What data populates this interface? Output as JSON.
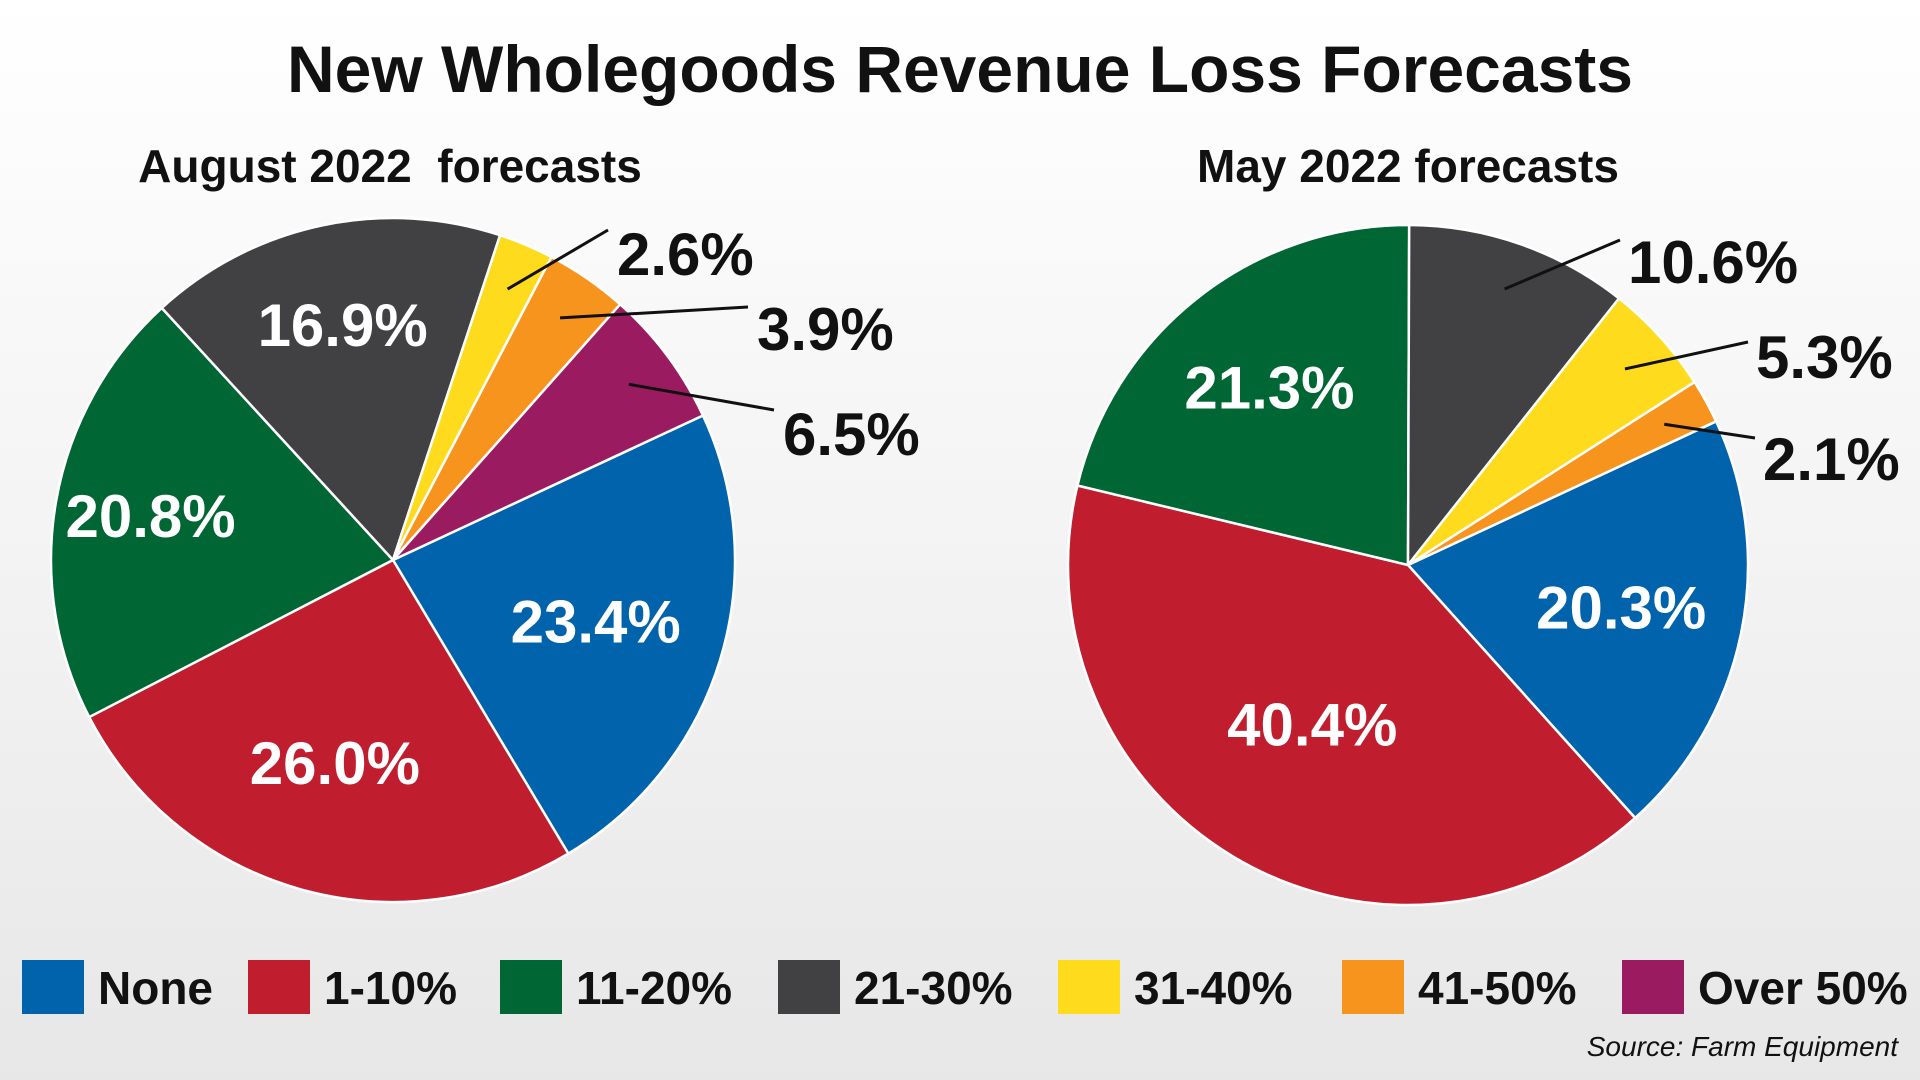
{
  "title": "New Wholegoods Revenue Loss Forecasts",
  "source": "Source: Farm Equipment",
  "legend": [
    {
      "label": "None",
      "color": "#0063ac"
    },
    {
      "label": "1-10%",
      "color": "#c01e2e"
    },
    {
      "label": "11-20%",
      "color": "#006634"
    },
    {
      "label": "21-30%",
      "color": "#414042"
    },
    {
      "label": "31-40%",
      "color": "#fedc1d"
    },
    {
      "label": "41-50%",
      "color": "#f7941d"
    },
    {
      "label": "Over 50%",
      "color": "#9b1b60"
    }
  ],
  "chart_data": [
    {
      "type": "pie",
      "title": "August 2022  forecasts",
      "categories": [
        "None",
        "1-10%",
        "11-20%",
        "21-30%",
        "31-40%",
        "41-50%",
        "Over 50%"
      ],
      "values": [
        23.4,
        26.0,
        20.8,
        16.9,
        2.6,
        3.9,
        6.5
      ],
      "labels": [
        "23.4%",
        "26.0%",
        "20.8%",
        "16.9%",
        "2.6%",
        "3.9%",
        "6.5%"
      ],
      "colors": [
        "#0063ac",
        "#c01e2e",
        "#006634",
        "#414042",
        "#fedc1d",
        "#f7941d",
        "#9b1b60"
      ],
      "label_placement": [
        "inside",
        "inside",
        "inside",
        "inside",
        "outside",
        "outside",
        "outside"
      ]
    },
    {
      "type": "pie",
      "title": "May 2022 forecasts",
      "categories": [
        "None",
        "1-10%",
        "11-20%",
        "21-30%",
        "31-40%",
        "41-50%"
      ],
      "values": [
        20.3,
        40.4,
        21.3,
        10.6,
        5.3,
        2.1
      ],
      "labels": [
        "20.3%",
        "40.4%",
        "21.3%",
        "10.6%",
        "5.3%",
        "2.1%"
      ],
      "colors": [
        "#0063ac",
        "#c01e2e",
        "#006634",
        "#414042",
        "#fedc1d",
        "#f7941d"
      ],
      "label_placement": [
        "inside",
        "inside",
        "inside",
        "outside",
        "outside",
        "outside"
      ]
    }
  ]
}
